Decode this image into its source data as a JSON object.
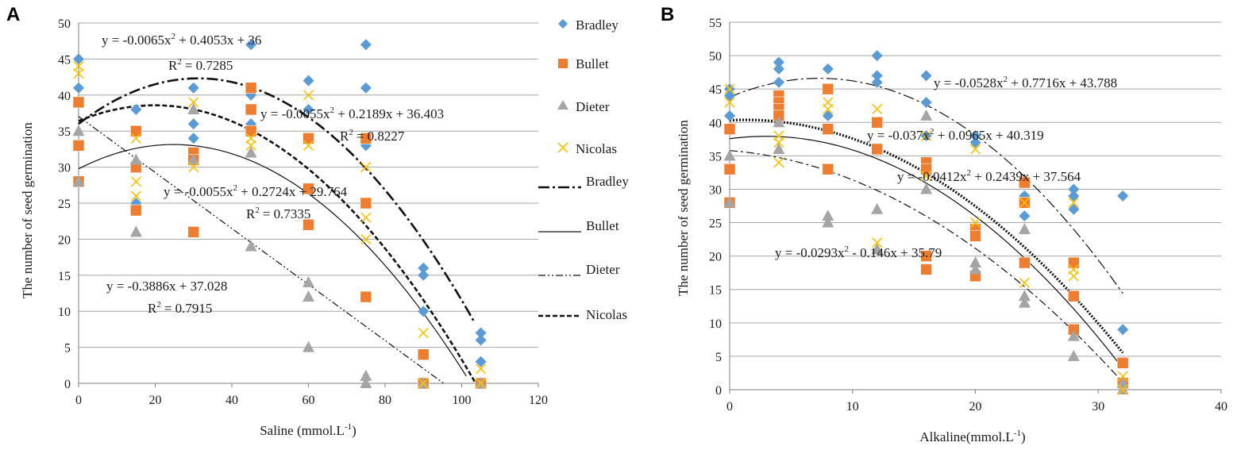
{
  "chart_data": [
    {
      "type": "scatter",
      "panel": "A",
      "xlabel": "Saline (mmol.L-1)",
      "xlabel_main": "Saline (mmol.L",
      "xlabel_sup": "-1",
      "xlabel_tail": ")",
      "ylabel": "The number of seed germination",
      "xlim": [
        0,
        120
      ],
      "ylim": [
        0,
        50
      ],
      "xticks": [
        0,
        20,
        40,
        60,
        80,
        100,
        120
      ],
      "yticks": [
        0,
        5,
        10,
        15,
        20,
        25,
        30,
        35,
        40,
        45,
        50
      ],
      "grid": "horizontal",
      "series": [
        {
          "name": "Bradley",
          "marker": "diamond",
          "color": "#5B9BD5",
          "points": [
            [
              0,
              45
            ],
            [
              0,
              41
            ],
            [
              15,
              38
            ],
            [
              15,
              25
            ],
            [
              30,
              41
            ],
            [
              30,
              36
            ],
            [
              30,
              34
            ],
            [
              45,
              47
            ],
            [
              45,
              40
            ],
            [
              45,
              36
            ],
            [
              60,
              42
            ],
            [
              60,
              38
            ],
            [
              75,
              47
            ],
            [
              75,
              41
            ],
            [
              75,
              33
            ],
            [
              90,
              16
            ],
            [
              90,
              15
            ],
            [
              90,
              10
            ],
            [
              105,
              7
            ],
            [
              105,
              6
            ],
            [
              105,
              3
            ]
          ]
        },
        {
          "name": "Bullet",
          "marker": "square",
          "color": "#ED7D31",
          "points": [
            [
              0,
              39
            ],
            [
              0,
              33
            ],
            [
              0,
              28
            ],
            [
              15,
              35
            ],
            [
              15,
              30
            ],
            [
              15,
              24
            ],
            [
              30,
              32
            ],
            [
              30,
              31
            ],
            [
              30,
              21
            ],
            [
              45,
              41
            ],
            [
              45,
              38
            ],
            [
              45,
              35
            ],
            [
              60,
              34
            ],
            [
              60,
              27
            ],
            [
              60,
              22
            ],
            [
              75,
              34
            ],
            [
              75,
              25
            ],
            [
              75,
              12
            ],
            [
              90,
              4
            ],
            [
              90,
              0
            ],
            [
              105,
              0
            ]
          ]
        },
        {
          "name": "Dieter",
          "marker": "triangle",
          "color": "#A5A5A5",
          "points": [
            [
              0,
              35
            ],
            [
              0,
              28
            ],
            [
              15,
              31
            ],
            [
              15,
              21
            ],
            [
              30,
              38
            ],
            [
              30,
              31
            ],
            [
              45,
              32
            ],
            [
              45,
              19
            ],
            [
              60,
              14
            ],
            [
              60,
              12
            ],
            [
              60,
              5
            ],
            [
              75,
              1
            ],
            [
              75,
              0
            ],
            [
              90,
              0
            ],
            [
              105,
              0
            ]
          ]
        },
        {
          "name": "Nicolas",
          "marker": "x",
          "color": "#FFC000",
          "points": [
            [
              0,
              44
            ],
            [
              0,
              43
            ],
            [
              15,
              34
            ],
            [
              15,
              28
            ],
            [
              15,
              26
            ],
            [
              30,
              39
            ],
            [
              30,
              30
            ],
            [
              45,
              34
            ],
            [
              45,
              33
            ],
            [
              60,
              40
            ],
            [
              60,
              33
            ],
            [
              75,
              30
            ],
            [
              75,
              23
            ],
            [
              75,
              20
            ],
            [
              90,
              7
            ],
            [
              90,
              0
            ],
            [
              105,
              2
            ],
            [
              105,
              0
            ]
          ]
        }
      ],
      "trendlines": [
        {
          "name": "Bradley",
          "style": "long-dash-dot",
          "coeffs": [
            -0.0065,
            0.4053,
            36
          ],
          "xmax": 103.1
        },
        {
          "name": "Bullet",
          "style": "solid",
          "coeffs": [
            -0.0055,
            0.2724,
            29.764
          ],
          "xmax": 101.2
        },
        {
          "name": "Dieter",
          "style": "dash-dot-dot",
          "coeffs": [
            0,
            -0.3886,
            37.028
          ],
          "xmax": 95.3
        },
        {
          "name": "Nicolas",
          "style": "dashed",
          "coeffs": [
            -0.0055,
            0.2189,
            36.403
          ],
          "xmax": 103.6
        }
      ],
      "annotations": [
        {
          "eq_pre": "y = -0.0065x",
          "eq_post": " + 0.4053x + 36",
          "r2": "= 0.7285"
        },
        {
          "eq_pre": "y = -0.0055x",
          "eq_post": " + 0.2189x + 36.403",
          "r2": "= 0.8227"
        },
        {
          "eq_pre": "y = -0.0055x",
          "eq_post": " + 0.2724x + 29.764",
          "r2": "= 0.7335"
        },
        {
          "eq_pre": "y = -0.3886x + 37.028",
          "eq_post": "",
          "r2": "= 0.7915"
        }
      ],
      "legend_markers": [
        "Bradley",
        "Bullet",
        "Dieter",
        "Nicolas"
      ],
      "legend_lines": [
        "Bradley",
        "Bullet",
        "Dieter",
        "Nicolas"
      ]
    },
    {
      "type": "scatter",
      "panel": "B",
      "xlabel": "Alkaline(mmol.L-1)",
      "xlabel_main": "Alkaline(mmol.L",
      "xlabel_sup": "-1",
      "xlabel_tail": ")",
      "ylabel": "The number of seed germination",
      "xlim": [
        0,
        40
      ],
      "ylim": [
        0,
        55
      ],
      "xticks": [
        0,
        10,
        20,
        30,
        40
      ],
      "yticks": [
        0,
        5,
        10,
        15,
        20,
        25,
        30,
        35,
        40,
        45,
        50,
        55
      ],
      "grid": "horizontal",
      "series": [
        {
          "name": "Bradley",
          "marker": "diamond",
          "color": "#5B9BD5",
          "points": [
            [
              0,
              45
            ],
            [
              0,
              44
            ],
            [
              0,
              41
            ],
            [
              4,
              49
            ],
            [
              4,
              48
            ],
            [
              4,
              46
            ],
            [
              8,
              48
            ],
            [
              8,
              41
            ],
            [
              12,
              50
            ],
            [
              12,
              47
            ],
            [
              12,
              46
            ],
            [
              16,
              47
            ],
            [
              16,
              43
            ],
            [
              16,
              38
            ],
            [
              20,
              38
            ],
            [
              20,
              37
            ],
            [
              24,
              29
            ],
            [
              24,
              26
            ],
            [
              28,
              30
            ],
            [
              28,
              29
            ],
            [
              28,
              27
            ],
            [
              32,
              29
            ],
            [
              32,
              9
            ]
          ]
        },
        {
          "name": "Bullet",
          "marker": "square",
          "color": "#ED7D31",
          "points": [
            [
              0,
              39
            ],
            [
              0,
              33
            ],
            [
              0,
              28
            ],
            [
              4,
              44
            ],
            [
              4,
              43
            ],
            [
              4,
              42
            ],
            [
              4,
              41
            ],
            [
              8,
              45
            ],
            [
              8,
              39
            ],
            [
              8,
              33
            ],
            [
              12,
              40
            ],
            [
              12,
              36
            ],
            [
              16,
              34
            ],
            [
              16,
              33
            ],
            [
              16,
              20
            ],
            [
              16,
              18
            ],
            [
              20,
              24
            ],
            [
              20,
              23
            ],
            [
              20,
              17
            ],
            [
              24,
              31
            ],
            [
              24,
              28
            ],
            [
              24,
              19
            ],
            [
              28,
              19
            ],
            [
              28,
              14
            ],
            [
              28,
              9
            ],
            [
              32,
              4
            ],
            [
              32,
              1
            ]
          ]
        },
        {
          "name": "Dieter",
          "marker": "triangle",
          "color": "#A5A5A5",
          "points": [
            [
              0,
              35
            ],
            [
              0,
              28
            ],
            [
              4,
              40
            ],
            [
              4,
              36
            ],
            [
              8,
              26
            ],
            [
              8,
              25
            ],
            [
              12,
              27
            ],
            [
              12,
              21
            ],
            [
              16,
              41
            ],
            [
              16,
              30
            ],
            [
              20,
              19
            ],
            [
              20,
              18
            ],
            [
              24,
              24
            ],
            [
              24,
              14
            ],
            [
              24,
              13
            ],
            [
              28,
              8
            ],
            [
              28,
              5
            ],
            [
              32,
              1
            ],
            [
              32,
              0
            ]
          ]
        },
        {
          "name": "Nicolas",
          "marker": "x",
          "color": "#FFC000",
          "points": [
            [
              0,
              45
            ],
            [
              0,
              43
            ],
            [
              4,
              38
            ],
            [
              4,
              37
            ],
            [
              4,
              34
            ],
            [
              8,
              43
            ],
            [
              8,
              42
            ],
            [
              12,
              42
            ],
            [
              12,
              22
            ],
            [
              16,
              38
            ],
            [
              16,
              32
            ],
            [
              20,
              36
            ],
            [
              20,
              25
            ],
            [
              24,
              28
            ],
            [
              24,
              16
            ],
            [
              28,
              28
            ],
            [
              28,
              18
            ],
            [
              28,
              17
            ],
            [
              32,
              2
            ],
            [
              32,
              0
            ]
          ]
        }
      ],
      "trendlines": [
        {
          "name": "Bradley",
          "style": "long-dash-dot",
          "coeffs": [
            -0.0528,
            0.7716,
            43.788
          ],
          "xmax": 32
        },
        {
          "name": "Bullet",
          "style": "solid",
          "coeffs": [
            -0.0412,
            0.2439,
            37.564
          ],
          "xmax": 32
        },
        {
          "name": "Dieter",
          "style": "dash-dot",
          "coeffs": [
            -0.0293,
            -0.146,
            35.79
          ],
          "xmax": 32
        },
        {
          "name": "Nicolas",
          "style": "dotted",
          "coeffs": [
            -0.037,
            0.0965,
            40.319
          ],
          "xmax": 32
        }
      ],
      "annotations": [
        {
          "eq_pre": "y = -0.0528x",
          "eq_post": " + 0.7716x + 43.788",
          "r2": ""
        },
        {
          "eq_pre": "y = -0.037x",
          "eq_post": " + 0.0965x + 40.319",
          "r2": ""
        },
        {
          "eq_pre": "y = -0.0412x",
          "eq_post": " + 0.2439x + 37.564",
          "r2": ""
        },
        {
          "eq_pre": "y = -0.0293x",
          "eq_post": " - 0.146x + 35.79",
          "r2": ""
        }
      ]
    }
  ],
  "r2_symbol": "R",
  "sq": "2"
}
